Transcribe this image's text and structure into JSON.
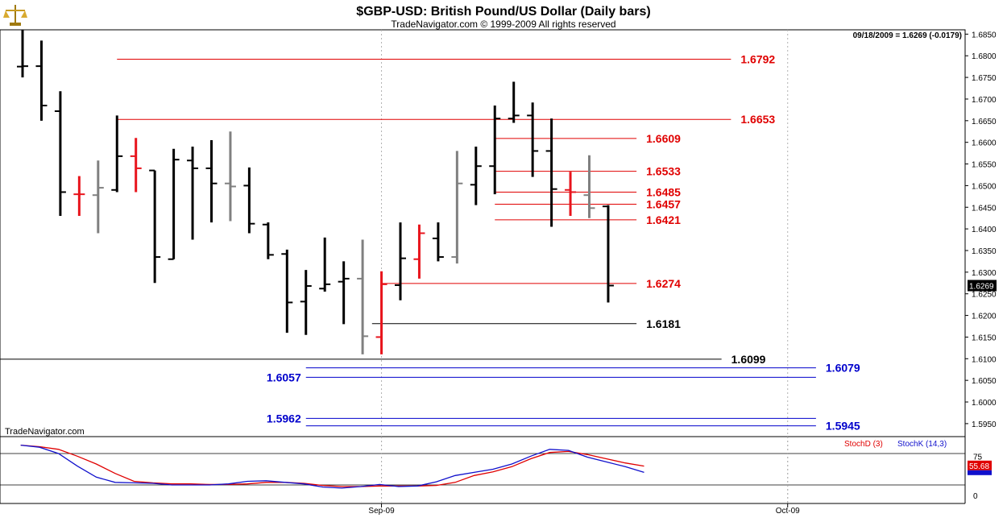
{
  "header": {
    "title": "$GBP-USD:  British Pound/US Dollar  (Daily bars)",
    "subtitle": "TradeNavigator.com © 1999-2009 All rights reserved",
    "quote": "09/18/2009 = 1.6269 (-0.0179)",
    "watermark": "TradeNavigator.com",
    "logo_icon": "brass-scale-icon"
  },
  "colors": {
    "bar_black": "#000000",
    "bar_gray": "#808080",
    "bar_red": "#e8141c",
    "level_red": "#e00000",
    "level_black": "#000000",
    "level_blue": "#0000cc",
    "stoch_d": "#e00000",
    "stoch_k": "#1010cc"
  },
  "chart_data": [
    {
      "type": "ohlc",
      "title": "$GBP-USD:  British Pound/US Dollar  (Daily bars)",
      "ylim": [
        1.592,
        1.686
      ],
      "y_ticks": [
        "1.6850",
        "1.6800",
        "1.6750",
        "1.6700",
        "1.6650",
        "1.6600",
        "1.6550",
        "1.6500",
        "1.6450",
        "1.6400",
        "1.6350",
        "1.6300",
        "1.6250",
        "1.6200",
        "1.6150",
        "1.6100",
        "1.6050",
        "1.6000",
        "1.5950"
      ],
      "x_ticks": [
        "Sep-09",
        "Oct-09"
      ],
      "x_tick_index": [
        19,
        40.5
      ],
      "last_price_label": "1.6269",
      "bars": [
        {
          "o": 1.6775,
          "h": 1.686,
          "l": 1.675,
          "c": 1.6776,
          "color": "black"
        },
        {
          "o": 1.6776,
          "h": 1.6835,
          "l": 1.665,
          "c": 1.6685,
          "color": "black"
        },
        {
          "o": 1.6672,
          "h": 1.6718,
          "l": 1.643,
          "c": 1.6485,
          "color": "black"
        },
        {
          "o": 1.648,
          "h": 1.6522,
          "l": 1.643,
          "c": 1.648,
          "color": "red"
        },
        {
          "o": 1.6478,
          "h": 1.6558,
          "l": 1.639,
          "c": 1.6495,
          "color": "gray"
        },
        {
          "o": 1.649,
          "h": 1.6662,
          "l": 1.6485,
          "c": 1.6568,
          "color": "black"
        },
        {
          "o": 1.6568,
          "h": 1.661,
          "l": 1.6485,
          "c": 1.654,
          "color": "red"
        },
        {
          "o": 1.6535,
          "h": 1.6535,
          "l": 1.6275,
          "c": 1.6335,
          "color": "black"
        },
        {
          "o": 1.633,
          "h": 1.6585,
          "l": 1.633,
          "c": 1.656,
          "color": "black"
        },
        {
          "o": 1.6558,
          "h": 1.659,
          "l": 1.6375,
          "c": 1.654,
          "color": "black"
        },
        {
          "o": 1.654,
          "h": 1.6605,
          "l": 1.6415,
          "c": 1.6505,
          "color": "black"
        },
        {
          "o": 1.6505,
          "h": 1.6625,
          "l": 1.6418,
          "c": 1.6498,
          "color": "gray"
        },
        {
          "o": 1.65,
          "h": 1.6542,
          "l": 1.639,
          "c": 1.6412,
          "color": "black"
        },
        {
          "o": 1.641,
          "h": 1.6415,
          "l": 1.633,
          "c": 1.634,
          "color": "black"
        },
        {
          "o": 1.6342,
          "h": 1.6352,
          "l": 1.616,
          "c": 1.623,
          "color": "black"
        },
        {
          "o": 1.6232,
          "h": 1.6305,
          "l": 1.6155,
          "c": 1.6268,
          "color": "black"
        },
        {
          "o": 1.6262,
          "h": 1.638,
          "l": 1.6255,
          "c": 1.6272,
          "color": "black"
        },
        {
          "o": 1.6278,
          "h": 1.6325,
          "l": 1.618,
          "c": 1.6285,
          "color": "black"
        },
        {
          "o": 1.6285,
          "h": 1.6375,
          "l": 1.611,
          "c": 1.6152,
          "color": "gray"
        },
        {
          "o": 1.615,
          "h": 1.6302,
          "l": 1.611,
          "c": 1.6272,
          "color": "red"
        },
        {
          "o": 1.627,
          "h": 1.6415,
          "l": 1.6235,
          "c": 1.6332,
          "color": "black"
        },
        {
          "o": 1.633,
          "h": 1.641,
          "l": 1.6285,
          "c": 1.639,
          "color": "red"
        },
        {
          "o": 1.6378,
          "h": 1.6415,
          "l": 1.6325,
          "c": 1.6335,
          "color": "black"
        },
        {
          "o": 1.6335,
          "h": 1.658,
          "l": 1.632,
          "c": 1.6505,
          "color": "gray"
        },
        {
          "o": 1.6502,
          "h": 1.659,
          "l": 1.6455,
          "c": 1.6545,
          "color": "black"
        },
        {
          "o": 1.6545,
          "h": 1.6685,
          "l": 1.648,
          "c": 1.6655,
          "color": "black"
        },
        {
          "o": 1.6655,
          "h": 1.674,
          "l": 1.6645,
          "c": 1.6662,
          "color": "black"
        },
        {
          "o": 1.6662,
          "h": 1.6692,
          "l": 1.652,
          "c": 1.658,
          "color": "black"
        },
        {
          "o": 1.658,
          "h": 1.6655,
          "l": 1.6405,
          "c": 1.6492,
          "color": "black"
        },
        {
          "o": 1.649,
          "h": 1.6532,
          "l": 1.643,
          "c": 1.6485,
          "color": "red"
        },
        {
          "o": 1.6478,
          "h": 1.657,
          "l": 1.6425,
          "c": 1.6448,
          "color": "gray"
        },
        {
          "o": 1.6452,
          "h": 1.6455,
          "l": 1.623,
          "c": 1.6269,
          "color": "black"
        }
      ],
      "levels": [
        {
          "value": 1.6792,
          "label": "1.6792",
          "color": "red",
          "from": 5,
          "to": 37.5,
          "label_side": "right"
        },
        {
          "value": 1.6653,
          "label": "1.6653",
          "color": "red",
          "from": 5,
          "to": 37.5,
          "label_side": "right"
        },
        {
          "value": 1.6609,
          "label": "1.6609",
          "color": "red",
          "from": 25,
          "to": 32.5,
          "label_side": "right"
        },
        {
          "value": 1.6533,
          "label": "1.6533",
          "color": "red",
          "from": 25,
          "to": 32.5,
          "label_side": "right"
        },
        {
          "value": 1.6485,
          "label": "1.6485",
          "color": "red",
          "from": 25,
          "to": 32.5,
          "label_side": "right"
        },
        {
          "value": 1.6457,
          "label": "1.6457",
          "color": "red",
          "from": 25,
          "to": 32.5,
          "label_side": "right"
        },
        {
          "value": 1.6421,
          "label": "1.6421",
          "color": "red",
          "from": 25,
          "to": 32.5,
          "label_side": "right"
        },
        {
          "value": 1.6274,
          "label": "1.6274",
          "color": "red",
          "from": 19,
          "to": 32.5,
          "label_side": "right"
        },
        {
          "value": 1.6181,
          "label": "1.6181",
          "color": "black",
          "from": 18.5,
          "to": 32.5,
          "label_side": "right"
        },
        {
          "value": 1.6099,
          "label": "1.6099",
          "color": "black",
          "from": -2,
          "to": 37,
          "label_side": "right"
        },
        {
          "value": 1.6079,
          "label": "1.6079",
          "color": "blue",
          "from": 15,
          "to": 42,
          "label_side": "right"
        },
        {
          "value": 1.6057,
          "label": "1.6057",
          "color": "blue",
          "from": 15,
          "to": 42,
          "label_side": "left"
        },
        {
          "value": 1.5962,
          "label": "1.5962",
          "color": "blue",
          "from": 15,
          "to": 42,
          "label_side": "left"
        },
        {
          "value": 1.5945,
          "label": "1.5945",
          "color": "blue",
          "from": 15,
          "to": 42,
          "label_side": "right"
        }
      ]
    },
    {
      "type": "line",
      "title": "",
      "ylim": [
        0,
        100
      ],
      "y_ticks": [
        "75",
        "0"
      ],
      "reference_lines": [
        80,
        20
      ],
      "last_value_d": "55.68",
      "series": [
        {
          "name": "StochD (3)",
          "color": "red",
          "values": [
            96,
            93,
            88,
            75,
            60,
            42,
            27,
            24,
            22,
            22,
            21,
            21,
            22,
            25,
            25,
            23,
            19,
            17,
            17,
            18,
            18,
            18,
            19,
            25,
            38,
            45,
            55,
            70,
            82,
            84,
            78,
            70,
            62,
            56
          ]
        },
        {
          "name": "StochK (14,3)",
          "color": "blue",
          "values": [
            96,
            92,
            80,
            56,
            35,
            25,
            24,
            23,
            20,
            20,
            20,
            22,
            27,
            28,
            25,
            22,
            16,
            14,
            17,
            21,
            17,
            18,
            26,
            38,
            44,
            50,
            60,
            75,
            88,
            86,
            73,
            64,
            55,
            44
          ]
        }
      ]
    }
  ]
}
